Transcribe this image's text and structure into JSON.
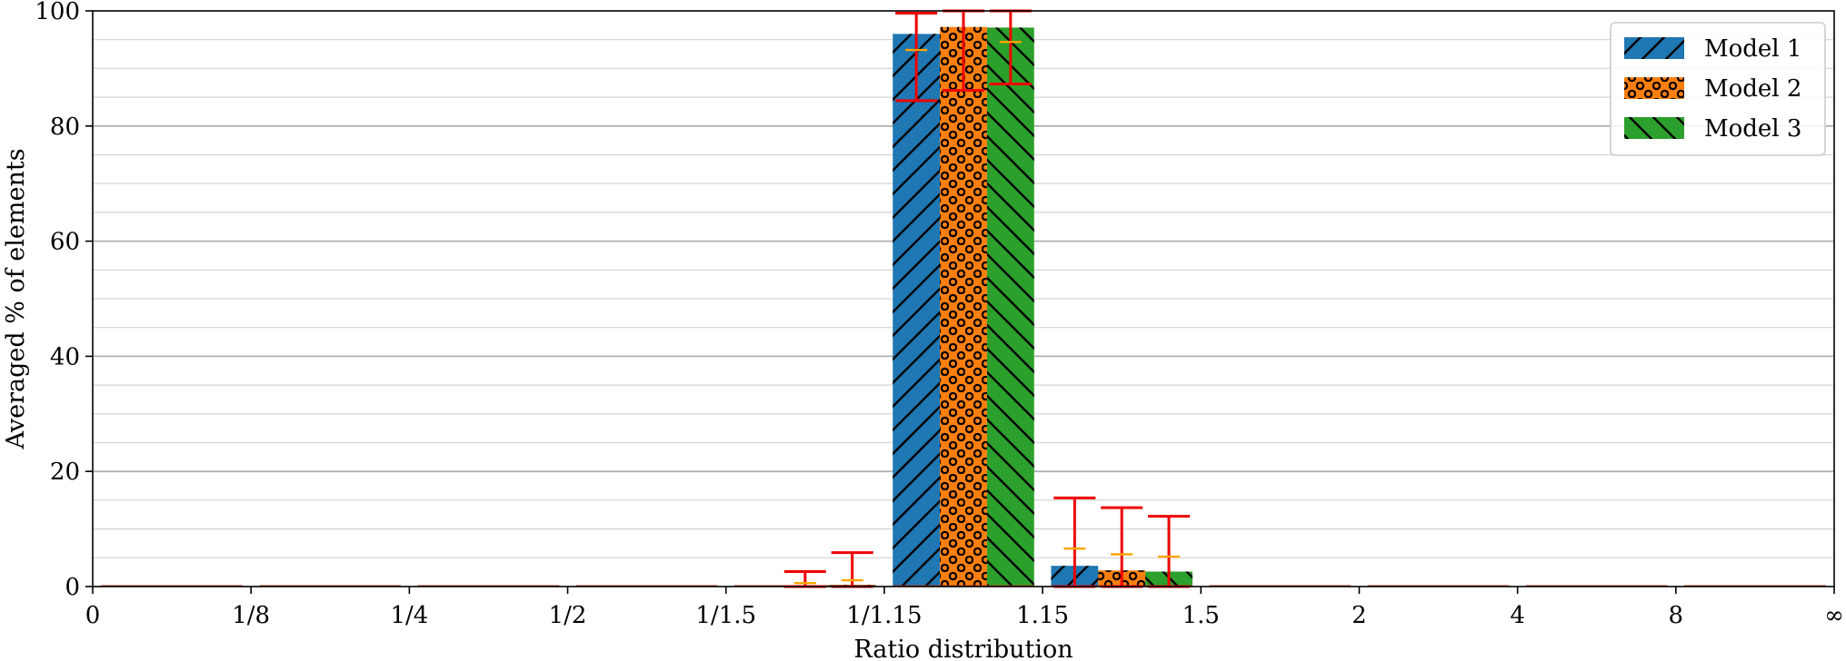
{
  "chart_data": {
    "type": "bar",
    "title": "",
    "xlabel": "Ratio distribution",
    "ylabel": "Averaged % of elements",
    "ylim": [
      0,
      100
    ],
    "yticks": [
      0,
      20,
      40,
      60,
      80,
      100
    ],
    "yminor_step": 5,
    "grid": true,
    "legend_position": "top-right",
    "tick_labels": [
      "0",
      "1/8",
      "1/4",
      "1/2",
      "1/1.5",
      "1/1.15",
      "1.15",
      "1.5",
      "2",
      "4",
      "8",
      "∞"
    ],
    "bins": 11,
    "series": [
      {
        "name": "Model 1",
        "color": "#1f77b4",
        "pattern": "hatch-forward",
        "values": [
          0,
          0,
          0,
          0,
          0,
          96,
          3.6,
          0,
          0,
          0,
          0
        ],
        "error_upper": [
          0,
          0,
          0,
          0,
          0,
          99.6,
          15.4,
          0,
          0,
          0,
          0
        ],
        "error_lower": [
          0,
          0,
          0,
          0,
          0,
          84.4,
          0,
          0,
          0,
          0,
          0
        ],
        "inner_mark": [
          null,
          null,
          null,
          null,
          null,
          93.2,
          6.6,
          null,
          null,
          null,
          null
        ]
      },
      {
        "name": "Model 2",
        "color": "#ff7f0e",
        "pattern": "dots",
        "values": [
          0,
          0,
          0,
          0,
          0.2,
          97.2,
          2.8,
          0,
          0,
          0,
          0
        ],
        "error_upper": [
          0,
          0,
          0,
          0,
          2.6,
          100,
          13.7,
          0,
          0,
          0,
          0
        ],
        "error_lower": [
          0,
          0,
          0,
          0,
          0,
          86.2,
          0,
          0,
          0,
          0,
          0
        ],
        "inner_mark": [
          null,
          null,
          null,
          null,
          0.6,
          null,
          5.6,
          null,
          null,
          null,
          null
        ]
      },
      {
        "name": "Model 3",
        "color": "#2ca02c",
        "pattern": "hatch-backward",
        "values": [
          0,
          0,
          0,
          0,
          0.3,
          97.1,
          2.6,
          0,
          0,
          0,
          0
        ],
        "error_upper": [
          0,
          0,
          0,
          0,
          5.9,
          100,
          12.2,
          0,
          0,
          0,
          0
        ],
        "error_lower": [
          0,
          0,
          0,
          0,
          0,
          87.3,
          0,
          0,
          0,
          0,
          0
        ],
        "inner_mark": [
          null,
          null,
          null,
          null,
          1.1,
          94.6,
          5.2,
          null,
          null,
          null,
          null
        ]
      }
    ]
  }
}
